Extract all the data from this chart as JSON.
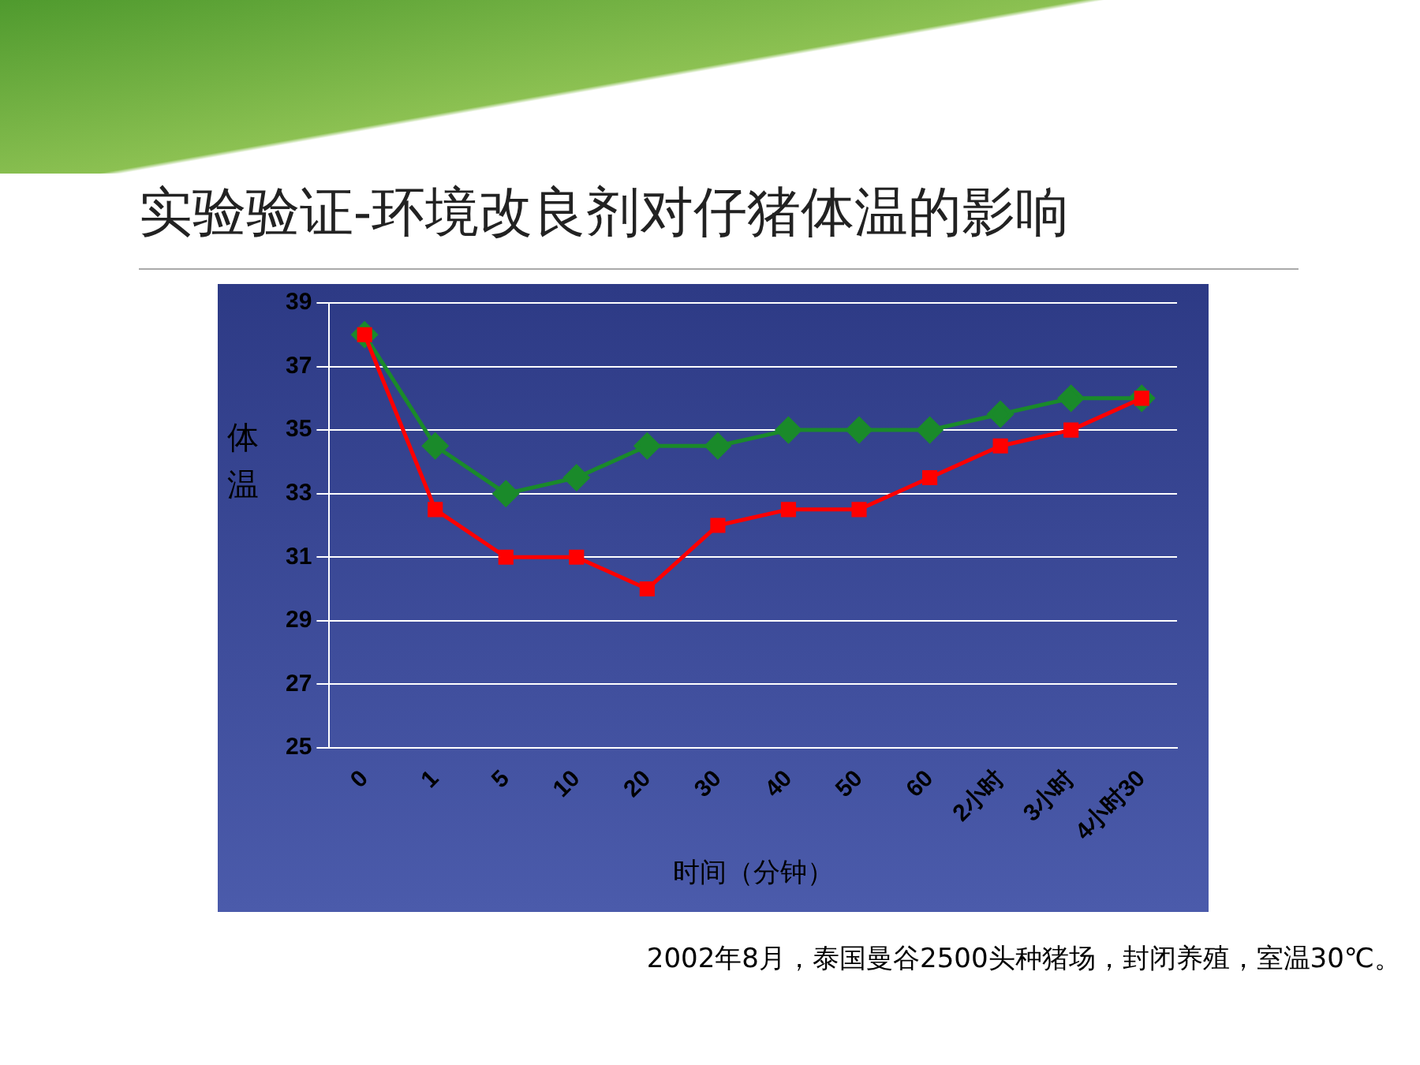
{
  "chart_data": {
    "type": "line",
    "title": "实验验证-环境改良剂对仔猪体温的影响",
    "xlabel": "时间（分钟）",
    "ylabel": "体温",
    "categories": [
      "0",
      "1",
      "5",
      "10",
      "20",
      "30",
      "40",
      "50",
      "60",
      "2小时",
      "3小时",
      "4小时30"
    ],
    "series": [
      {
        "color": "#1a8a2a",
        "marker": "diamond",
        "values": [
          38,
          34.5,
          33,
          33.5,
          34.5,
          34.5,
          35,
          35,
          35,
          35.5,
          36,
          36
        ]
      },
      {
        "color": "#ff0000",
        "marker": "square",
        "values": [
          38,
          32.5,
          31,
          31,
          30,
          32,
          32.5,
          32.5,
          33.5,
          34.5,
          35,
          36
        ]
      }
    ],
    "ylim": [
      25,
      39
    ],
    "yticks": [
      25,
      27,
      29,
      31,
      33,
      35,
      37,
      39
    ],
    "grid": "y",
    "line_style": "solid",
    "annotations": [
      "2002年8月，泰国曼谷2500头种猪场，封闭养殖，室温30℃。"
    ]
  }
}
